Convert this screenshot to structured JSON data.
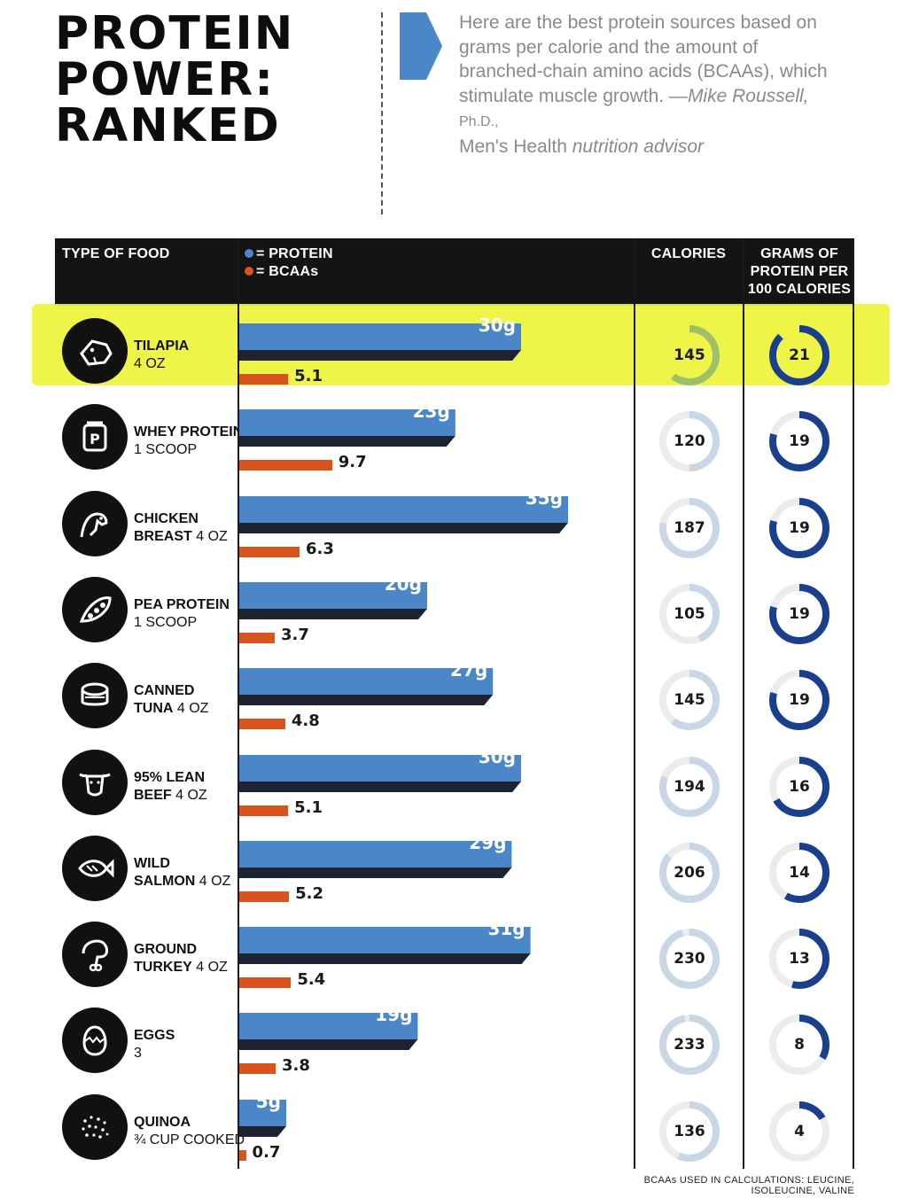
{
  "header": {
    "title_lines": [
      "PROTEIN",
      "POWER:",
      "RANKED"
    ],
    "intro_text": "Here are the best protein sources based on grams per calorie and the amount of branched-chain amino acids (BCAAs), which stimulate muscle growth.",
    "attribution_name": "—Mike Roussell,",
    "attribution_degree": "Ph.D.,",
    "attribution_outlet": "Men's Health",
    "attribution_role": "nutrition advisor",
    "arrow_color": "#4a86c8"
  },
  "table_header": {
    "food": "TYPE OF FOOD",
    "legend_protein": "= PROTEIN",
    "legend_bcaa": "= BCAAs",
    "calories": "CALORIES",
    "grams_line1": "GRAMS OF",
    "grams_line2": "PROTEIN PER",
    "grams_line3": "100 CALORIES"
  },
  "colors": {
    "protein": "#4a86c8",
    "protein_shadow": "#1d2330",
    "bcaa": "#d8531e",
    "calories_ring": "#c9d6e6",
    "calories_ring_highlight": "#9fc06a",
    "grams_ring": "#1a3f8f",
    "ring_track": "#ececec",
    "highlight": "#eef33a"
  },
  "chart_data": {
    "type": "bar",
    "categories": [
      "TILAPIA",
      "WHEY PROTEIN",
      "CHICKEN BREAST",
      "PEA PROTEIN",
      "CANNED TUNA",
      "95% LEAN BEEF",
      "WILD SALMON",
      "GROUND TURKEY",
      "EGGS",
      "QUINOA"
    ],
    "series": [
      {
        "name": "PROTEIN",
        "unit": "g",
        "values": [
          30,
          23,
          35,
          20,
          27,
          30,
          29,
          31,
          19,
          5
        ]
      },
      {
        "name": "BCAAs",
        "values": [
          5.1,
          9.7,
          6.3,
          3.7,
          4.8,
          5.1,
          5.2,
          5.4,
          3.8,
          0.7
        ]
      },
      {
        "name": "CALORIES",
        "values": [
          145,
          120,
          187,
          105,
          145,
          194,
          206,
          230,
          233,
          136
        ]
      },
      {
        "name": "GRAMS OF PROTEIN PER 100 CALORIES",
        "values": [
          21,
          19,
          19,
          19,
          19,
          16,
          14,
          13,
          8,
          4
        ]
      }
    ],
    "highlighted_category": "TILAPIA"
  },
  "rows": [
    {
      "name": "TILAPIA",
      "serving": "4 OZ",
      "two_line": false,
      "icon": "tilapia-icon",
      "protein_label": "30g",
      "bcaa_label": "5.1",
      "calories": "145",
      "grams": "21"
    },
    {
      "name": "WHEY PROTEIN",
      "serving": "1 SCOOP",
      "two_line": false,
      "icon": "whey-protein-icon",
      "protein_label": "23g",
      "bcaa_label": "9.7",
      "calories": "120",
      "grams": "19"
    },
    {
      "name_l1": "CHICKEN",
      "name_l2": "BREAST",
      "serving": "4 OZ",
      "two_line": true,
      "icon": "chicken-icon",
      "protein_label": "35g",
      "bcaa_label": "6.3",
      "calories": "187",
      "grams": "19"
    },
    {
      "name": "PEA PROTEIN",
      "serving": "1 SCOOP",
      "two_line": false,
      "icon": "pea-pod-icon",
      "protein_label": "20g",
      "bcaa_label": "3.7",
      "calories": "105",
      "grams": "19"
    },
    {
      "name_l1": "CANNED",
      "name_l2": "TUNA",
      "serving": "4 OZ",
      "two_line": true,
      "icon": "tuna-can-icon",
      "protein_label": "27g",
      "bcaa_label": "4.8",
      "calories": "145",
      "grams": "19"
    },
    {
      "name_l1": "95% LEAN",
      "name_l2": "BEEF",
      "serving": "4 OZ",
      "two_line": true,
      "icon": "cow-head-icon",
      "protein_label": "30g",
      "bcaa_label": "5.1",
      "calories": "194",
      "grams": "16"
    },
    {
      "name_l1": "WILD",
      "name_l2": "SALMON",
      "serving": "4 OZ",
      "two_line": true,
      "icon": "fish-icon",
      "protein_label": "29g",
      "bcaa_label": "5.2",
      "calories": "206",
      "grams": "14"
    },
    {
      "name_l1": "GROUND",
      "name_l2": "TURKEY",
      "serving": "4 OZ",
      "two_line": true,
      "icon": "turkey-leg-icon",
      "protein_label": "31g",
      "bcaa_label": "5.4",
      "calories": "230",
      "grams": "13"
    },
    {
      "name": "EGGS",
      "serving": "3",
      "two_line": false,
      "icon": "egg-icon",
      "protein_label": "19g",
      "bcaa_label": "3.8",
      "calories": "233",
      "grams": "8"
    },
    {
      "name": "QUINOA",
      "serving": "¾ CUP COOKED",
      "two_line": false,
      "icon": "quinoa-grains-icon",
      "protein_label": "5g",
      "bcaa_label": "0.7",
      "calories": "136",
      "grams": "4"
    }
  ],
  "footnote": "BCAAs USED IN CALCULATIONS: LEUCINE, ISOLEUCINE, VALINE"
}
